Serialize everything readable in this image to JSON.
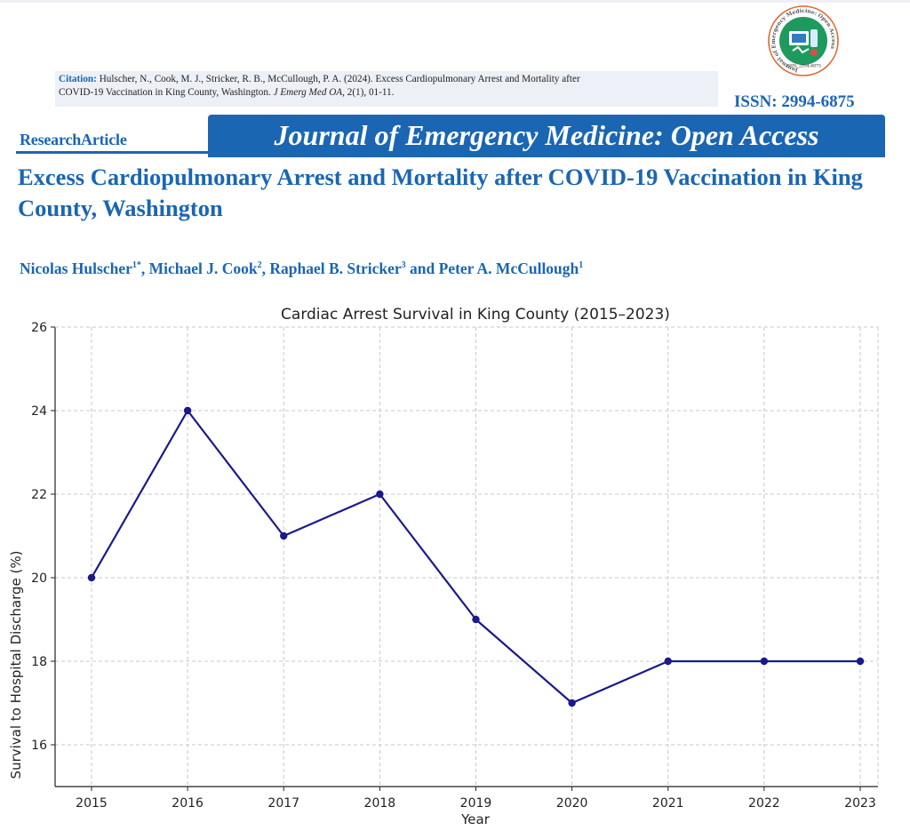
{
  "citation": {
    "label": "Citation:",
    "line1": "Hulscher, N., Cook, M. J., Stricker, R. B., McCullough, P. A. (2024). Excess Cardiopulmonary Arrest and Mortality after",
    "line2_pre": "COVID-19 Vaccination in King County, Washington.",
    "journal_abbr": "J Emerg Med OA,",
    "line2_post": "2(1), 01-11."
  },
  "logo": {
    "ring_text": "Journal of Emergency Medicine: Open Access",
    "issn_small": "ISSN: 2994-6875"
  },
  "issn": "ISSN: 2994-6875",
  "article_type": "ResearchArticle",
  "journal_name": "Journal of Emergency Medicine: Open Access",
  "article_title": "Excess Cardiopulmonary Arrest and Mortality after COVID-19 Vaccination in King County, Washington",
  "authors": [
    {
      "name": "Nicolas Hulscher",
      "sup": "1*",
      "sep": ", "
    },
    {
      "name": "Michael J. Cook",
      "sup": "2",
      "sep": ", "
    },
    {
      "name": "Raphael B. Stricker",
      "sup": "3",
      "sep": " and "
    },
    {
      "name": "Peter A. McCullough",
      "sup": "1",
      "sep": ""
    }
  ],
  "colors": {
    "brand_blue": "#1a66b3",
    "line": "#1a1a8c",
    "grid": "#c8c8c8"
  },
  "chart_data": {
    "type": "line",
    "title": "Cardiac Arrest Survival in King County (2015–2023)",
    "xlabel": "Year",
    "ylabel": "Survival to Hospital Discharge (%)",
    "x": [
      2015,
      2016,
      2017,
      2018,
      2019,
      2020,
      2021,
      2022,
      2023
    ],
    "series": [
      {
        "name": "Survival to Hospital Discharge (%)",
        "values": [
          20,
          24,
          21,
          22,
          19,
          17,
          18,
          18,
          18
        ]
      }
    ],
    "ylim": [
      15,
      26
    ],
    "yticks": [
      16,
      18,
      20,
      22,
      24,
      26
    ],
    "grid": true,
    "markers": true
  }
}
